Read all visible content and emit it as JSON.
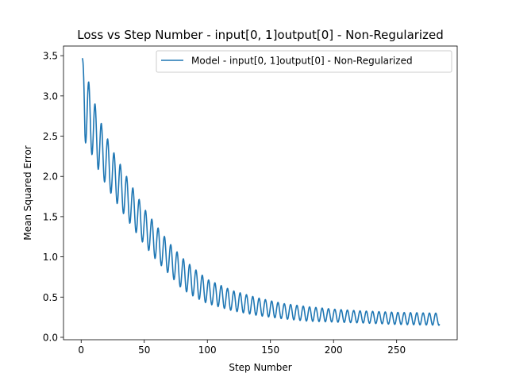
{
  "chart_data": {
    "type": "line",
    "title": "Loss vs Step Number - input[0, 1]output[0] - Non-Regularized",
    "xlabel": "Step Number",
    "ylabel": "Mean Squared Error",
    "xlim": [
      -14,
      298
    ],
    "ylim": [
      -0.03,
      3.62
    ],
    "xticks": [
      0,
      50,
      100,
      150,
      200,
      250
    ],
    "xtick_labels": [
      "0",
      "50",
      "100",
      "150",
      "200",
      "250"
    ],
    "yticks": [
      0.0,
      0.5,
      1.0,
      1.5,
      2.0,
      2.5,
      3.0,
      3.5
    ],
    "ytick_labels": [
      "0.0",
      "0.5",
      "1.0",
      "1.5",
      "2.0",
      "2.5",
      "3.0",
      "3.5"
    ],
    "grid": false,
    "legend_position": "top-right",
    "series": [
      {
        "name": "Model - input[0, 1]output[0] - Non-Regularized",
        "color": "#1f77b4",
        "x_start": 1,
        "x_end": 284,
        "period": 5,
        "upper_envelope": [
          [
            1,
            3.47
          ],
          [
            5,
            3.23
          ],
          [
            9,
            3.0
          ],
          [
            13,
            2.8
          ],
          [
            17,
            2.61
          ],
          [
            25,
            2.32
          ],
          [
            30,
            2.18
          ],
          [
            37,
            1.97
          ],
          [
            50,
            1.6
          ],
          [
            60,
            1.38
          ],
          [
            70,
            1.17
          ],
          [
            80,
            0.99
          ],
          [
            90,
            0.85
          ],
          [
            100,
            0.72
          ],
          [
            120,
            0.58
          ],
          [
            140,
            0.49
          ],
          [
            160,
            0.42
          ],
          [
            180,
            0.38
          ],
          [
            200,
            0.35
          ],
          [
            220,
            0.33
          ],
          [
            250,
            0.31
          ],
          [
            284,
            0.3
          ]
        ],
        "lower_envelope": [
          [
            1,
            3.33
          ],
          [
            3,
            2.43
          ],
          [
            8,
            2.29
          ],
          [
            12,
            2.14
          ],
          [
            16,
            2.0
          ],
          [
            25,
            1.75
          ],
          [
            35,
            1.5
          ],
          [
            50,
            1.15
          ],
          [
            60,
            0.95
          ],
          [
            70,
            0.78
          ],
          [
            80,
            0.6
          ],
          [
            90,
            0.5
          ],
          [
            100,
            0.42
          ],
          [
            120,
            0.33
          ],
          [
            140,
            0.27
          ],
          [
            160,
            0.23
          ],
          [
            180,
            0.2
          ],
          [
            200,
            0.19
          ],
          [
            220,
            0.18
          ],
          [
            250,
            0.16
          ],
          [
            284,
            0.15
          ]
        ]
      }
    ]
  }
}
